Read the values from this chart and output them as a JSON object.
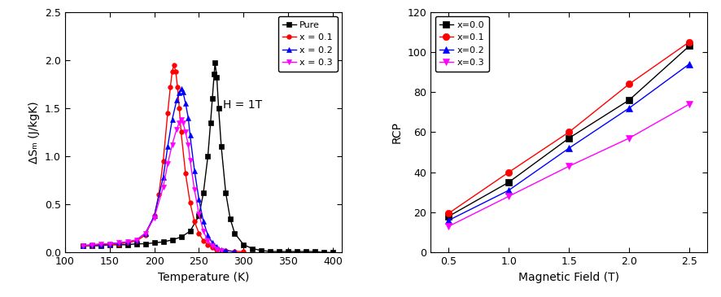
{
  "left_plot": {
    "xlabel": "Temperature (K)",
    "ylabel": "ΔSₘ (J/kgK)",
    "annotation": "H = 1T",
    "xlim": [
      100,
      410
    ],
    "ylim": [
      0.0,
      2.5
    ],
    "xticks": [
      100,
      150,
      200,
      250,
      300,
      350,
      400
    ],
    "yticks": [
      0.0,
      0.5,
      1.0,
      1.5,
      2.0,
      2.5
    ],
    "series": {
      "Pure": {
        "color": "#000000",
        "marker": "s",
        "T": [
          120,
          130,
          140,
          150,
          160,
          170,
          180,
          190,
          200,
          210,
          220,
          230,
          240,
          250,
          255,
          260,
          263,
          265,
          267,
          268,
          270,
          272,
          275,
          280,
          285,
          290,
          300,
          310,
          320,
          330,
          340,
          350,
          360,
          370,
          380,
          390,
          400
        ],
        "S": [
          0.07,
          0.07,
          0.07,
          0.08,
          0.08,
          0.08,
          0.09,
          0.09,
          0.1,
          0.11,
          0.13,
          0.16,
          0.22,
          0.38,
          0.62,
          1.0,
          1.35,
          1.6,
          1.85,
          1.97,
          1.82,
          1.5,
          1.1,
          0.62,
          0.35,
          0.2,
          0.08,
          0.04,
          0.02,
          0.01,
          0.01,
          0.01,
          0.01,
          0.01,
          0.01,
          0.0,
          0.0
        ]
      },
      "x=0.1": {
        "color": "#ff0000",
        "marker": "o",
        "T": [
          120,
          130,
          140,
          150,
          160,
          170,
          180,
          190,
          200,
          205,
          210,
          215,
          218,
          220,
          222,
          224,
          226,
          228,
          230,
          235,
          240,
          245,
          250,
          255,
          260,
          265,
          270,
          280,
          290,
          300
        ],
        "S": [
          0.07,
          0.07,
          0.08,
          0.08,
          0.09,
          0.1,
          0.12,
          0.18,
          0.38,
          0.6,
          0.95,
          1.45,
          1.72,
          1.88,
          1.95,
          1.88,
          1.72,
          1.5,
          1.25,
          0.82,
          0.52,
          0.32,
          0.2,
          0.12,
          0.08,
          0.05,
          0.03,
          0.02,
          0.01,
          0.01
        ]
      },
      "x=0.2": {
        "color": "#0000ff",
        "marker": "^",
        "T": [
          120,
          130,
          140,
          150,
          160,
          170,
          180,
          190,
          200,
          210,
          215,
          220,
          225,
          228,
          230,
          232,
          235,
          238,
          240,
          245,
          250,
          255,
          260,
          265,
          270,
          275,
          280,
          290
        ],
        "S": [
          0.07,
          0.08,
          0.08,
          0.09,
          0.1,
          0.11,
          0.13,
          0.2,
          0.38,
          0.78,
          1.1,
          1.38,
          1.58,
          1.66,
          1.7,
          1.67,
          1.55,
          1.4,
          1.22,
          0.85,
          0.55,
          0.32,
          0.18,
          0.1,
          0.06,
          0.03,
          0.02,
          0.01
        ]
      },
      "x=0.3": {
        "color": "#ff00ff",
        "marker": "v",
        "T": [
          120,
          130,
          140,
          150,
          160,
          170,
          180,
          190,
          200,
          210,
          215,
          220,
          225,
          228,
          230,
          232,
          235,
          238,
          240,
          245,
          250,
          255,
          260,
          265,
          270,
          275
        ],
        "S": [
          0.07,
          0.08,
          0.09,
          0.09,
          0.1,
          0.11,
          0.13,
          0.2,
          0.36,
          0.68,
          0.92,
          1.12,
          1.28,
          1.35,
          1.38,
          1.35,
          1.25,
          1.12,
          0.96,
          0.65,
          0.4,
          0.22,
          0.12,
          0.07,
          0.04,
          0.02
        ]
      }
    },
    "legend_labels": [
      "Pure",
      "x = 0.1",
      "x = 0.2",
      "x = 0.3"
    ],
    "legend_keys": [
      "Pure",
      "x=0.1",
      "x=0.2",
      "x=0.3"
    ]
  },
  "right_plot": {
    "xlabel": "Magnetic Field (T)",
    "ylabel": "RCP",
    "xlim": [
      0.35,
      2.65
    ],
    "ylim": [
      0,
      120
    ],
    "xticks": [
      0.5,
      1.0,
      1.5,
      2.0,
      2.5
    ],
    "yticks": [
      0,
      20,
      40,
      60,
      80,
      100,
      120
    ],
    "series": {
      "x=0.0": {
        "color": "#000000",
        "marker": "s",
        "H": [
          0.5,
          1.0,
          1.5,
          2.0,
          2.5
        ],
        "RCP": [
          18.0,
          35.0,
          57.0,
          76.0,
          103.0
        ]
      },
      "x=0.1": {
        "color": "#ff0000",
        "marker": "o",
        "H": [
          0.5,
          1.0,
          1.5,
          2.0,
          2.5
        ],
        "RCP": [
          19.5,
          40.0,
          60.0,
          84.0,
          105.0
        ]
      },
      "x=0.2": {
        "color": "#0000ff",
        "marker": "^",
        "H": [
          0.5,
          1.0,
          1.5,
          2.0,
          2.5
        ],
        "RCP": [
          16.0,
          31.0,
          52.0,
          72.0,
          94.0
        ]
      },
      "x=0.3": {
        "color": "#ff00ff",
        "marker": "v",
        "H": [
          0.5,
          1.0,
          1.5,
          2.0,
          2.5
        ],
        "RCP": [
          13.0,
          28.0,
          43.0,
          57.0,
          74.0
        ]
      }
    },
    "legend_labels": [
      "x=0.0",
      "x=0.1",
      "x=0.2",
      "x=0.3"
    ],
    "legend_keys": [
      "x=0.0",
      "x=0.1",
      "x=0.2",
      "x=0.3"
    ]
  },
  "figure": {
    "facecolor": "#ffffff",
    "markersize": 4,
    "linewidth": 1.0,
    "fontsize_label": 10,
    "fontsize_tick": 9,
    "fontsize_legend": 8,
    "fontsize_annotation": 10
  }
}
